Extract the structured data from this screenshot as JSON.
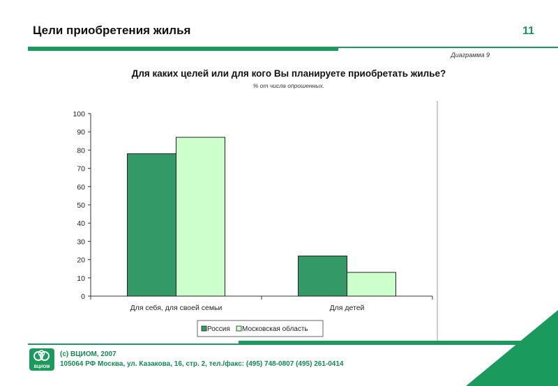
{
  "header": {
    "title": "Цели приобретения жилья",
    "page_number": "11"
  },
  "diagram_label": "Диаграмма 9",
  "question": "Для каких целей или для кого Вы планируете приобретать жилье?",
  "subquestion": "% от числа опрошенных.",
  "colors": {
    "accent": "#1b9a5e",
    "series_russia": "#339966",
    "series_moscow_region": "#CCFFCC"
  },
  "chart_data": {
    "type": "bar",
    "title": "Для каких целей или для кого Вы планируете приобретать жилье?",
    "subtitle": "% от числа опрошенных.",
    "categories": [
      "Для себя, для своей семьи",
      "Для детей"
    ],
    "series": [
      {
        "name": "Россия",
        "values": [
          78,
          22
        ]
      },
      {
        "name": "Московская область",
        "values": [
          87,
          13
        ]
      }
    ],
    "ylim": [
      0,
      100
    ],
    "yticks": [
      "0",
      "10",
      "20",
      "30",
      "40",
      "50",
      "60",
      "70",
      "80",
      "90",
      "100"
    ],
    "xlabel": "",
    "ylabel": "",
    "grid": false,
    "legend_position": "bottom"
  },
  "footer": {
    "logo_text": "ВЦИОМ",
    "copyright": "(с) ВЦИОМ, 2007",
    "address": "105064 РФ Москва, ул. Казакова, 16, стр. 2, тел./факс: (495) 748-0807 (495) 261-0414"
  }
}
